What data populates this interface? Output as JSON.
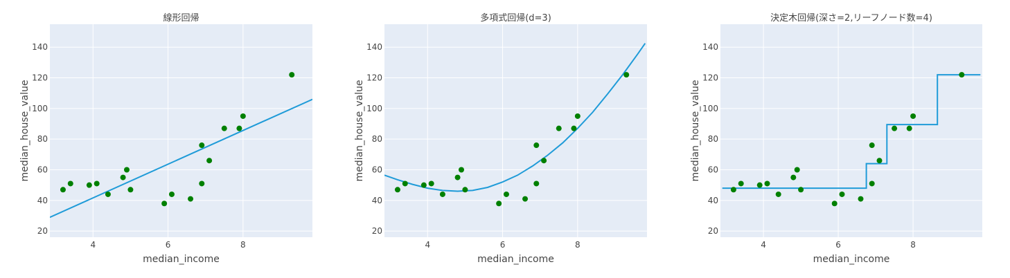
{
  "colors": {
    "plot_bg": "#E5ECF6",
    "point": "#008000",
    "line": "#1f9bd8",
    "grid": "#ffffff"
  },
  "chart_data": [
    {
      "type": "scatter",
      "title": "線形回帰",
      "xlabel": "median_income",
      "ylabel": "median_house_value",
      "xlim": [
        2.85,
        9.85
      ],
      "ylim": [
        16,
        155
      ],
      "x_ticks": [
        4,
        6,
        8
      ],
      "y_ticks": [
        20,
        40,
        60,
        80,
        100,
        120,
        140
      ],
      "grid": true,
      "points": {
        "x": [
          3.2,
          3.4,
          3.9,
          4.1,
          4.4,
          4.8,
          4.9,
          5.0,
          5.9,
          6.1,
          6.6,
          6.9,
          6.9,
          7.1,
          7.5,
          7.9,
          8.0,
          9.3
        ],
        "y": [
          47,
          51,
          50,
          51,
          44,
          55,
          60,
          47,
          38,
          44,
          41,
          51,
          76,
          66,
          87,
          87,
          95,
          122
        ]
      },
      "fit": {
        "x": [
          2.85,
          9.85
        ],
        "y": [
          29,
          106
        ]
      }
    },
    {
      "type": "scatter",
      "title": "多項式回帰(d=3)",
      "xlabel": "median_income",
      "ylabel": "median_house_value",
      "xlim": [
        2.85,
        9.85
      ],
      "ylim": [
        16,
        155
      ],
      "x_ticks": [
        4,
        6,
        8
      ],
      "y_ticks": [
        20,
        40,
        60,
        80,
        100,
        120,
        140
      ],
      "grid": true,
      "points": {
        "x": [
          3.2,
          3.4,
          3.9,
          4.1,
          4.4,
          4.8,
          4.9,
          5.0,
          5.9,
          6.1,
          6.6,
          6.9,
          6.9,
          7.1,
          7.5,
          7.9,
          8.0,
          9.3
        ],
        "y": [
          47,
          51,
          50,
          51,
          44,
          55,
          60,
          47,
          38,
          44,
          41,
          51,
          76,
          66,
          87,
          87,
          95,
          122
        ]
      },
      "fit": {
        "x": [
          2.85,
          3.2,
          3.6,
          4.0,
          4.4,
          4.8,
          5.2,
          5.6,
          6.0,
          6.4,
          6.8,
          7.2,
          7.6,
          8.0,
          8.4,
          8.8,
          9.2,
          9.6,
          9.8
        ],
        "y": [
          56.5,
          53.5,
          50.5,
          48.0,
          46.5,
          46.0,
          46.5,
          48.5,
          52.0,
          56.5,
          62.5,
          69.5,
          77.5,
          87.0,
          97.5,
          109.5,
          122.0,
          135.5,
          142.5
        ]
      }
    },
    {
      "type": "scatter",
      "title": "決定木回帰(深さ=2,リーフノード数=4)",
      "xlabel": "median_income",
      "ylabel": "median_house_value",
      "xlim": [
        2.85,
        9.85
      ],
      "ylim": [
        16,
        155
      ],
      "x_ticks": [
        4,
        6,
        8
      ],
      "y_ticks": [
        20,
        40,
        60,
        80,
        100,
        120,
        140
      ],
      "grid": true,
      "points": {
        "x": [
          3.2,
          3.4,
          3.9,
          4.1,
          4.4,
          4.8,
          4.9,
          5.0,
          5.9,
          6.1,
          6.6,
          6.9,
          6.9,
          7.1,
          7.5,
          7.9,
          8.0,
          9.3
        ],
        "y": [
          47,
          51,
          50,
          51,
          44,
          55,
          60,
          47,
          38,
          44,
          41,
          51,
          76,
          66,
          87,
          87,
          95,
          122
        ]
      },
      "fit": {
        "x": [
          2.9,
          6.75,
          6.75,
          7.3,
          7.3,
          8.65,
          8.65,
          9.8
        ],
        "y": [
          48,
          48,
          64,
          64,
          89.5,
          89.5,
          122,
          122
        ]
      }
    }
  ]
}
